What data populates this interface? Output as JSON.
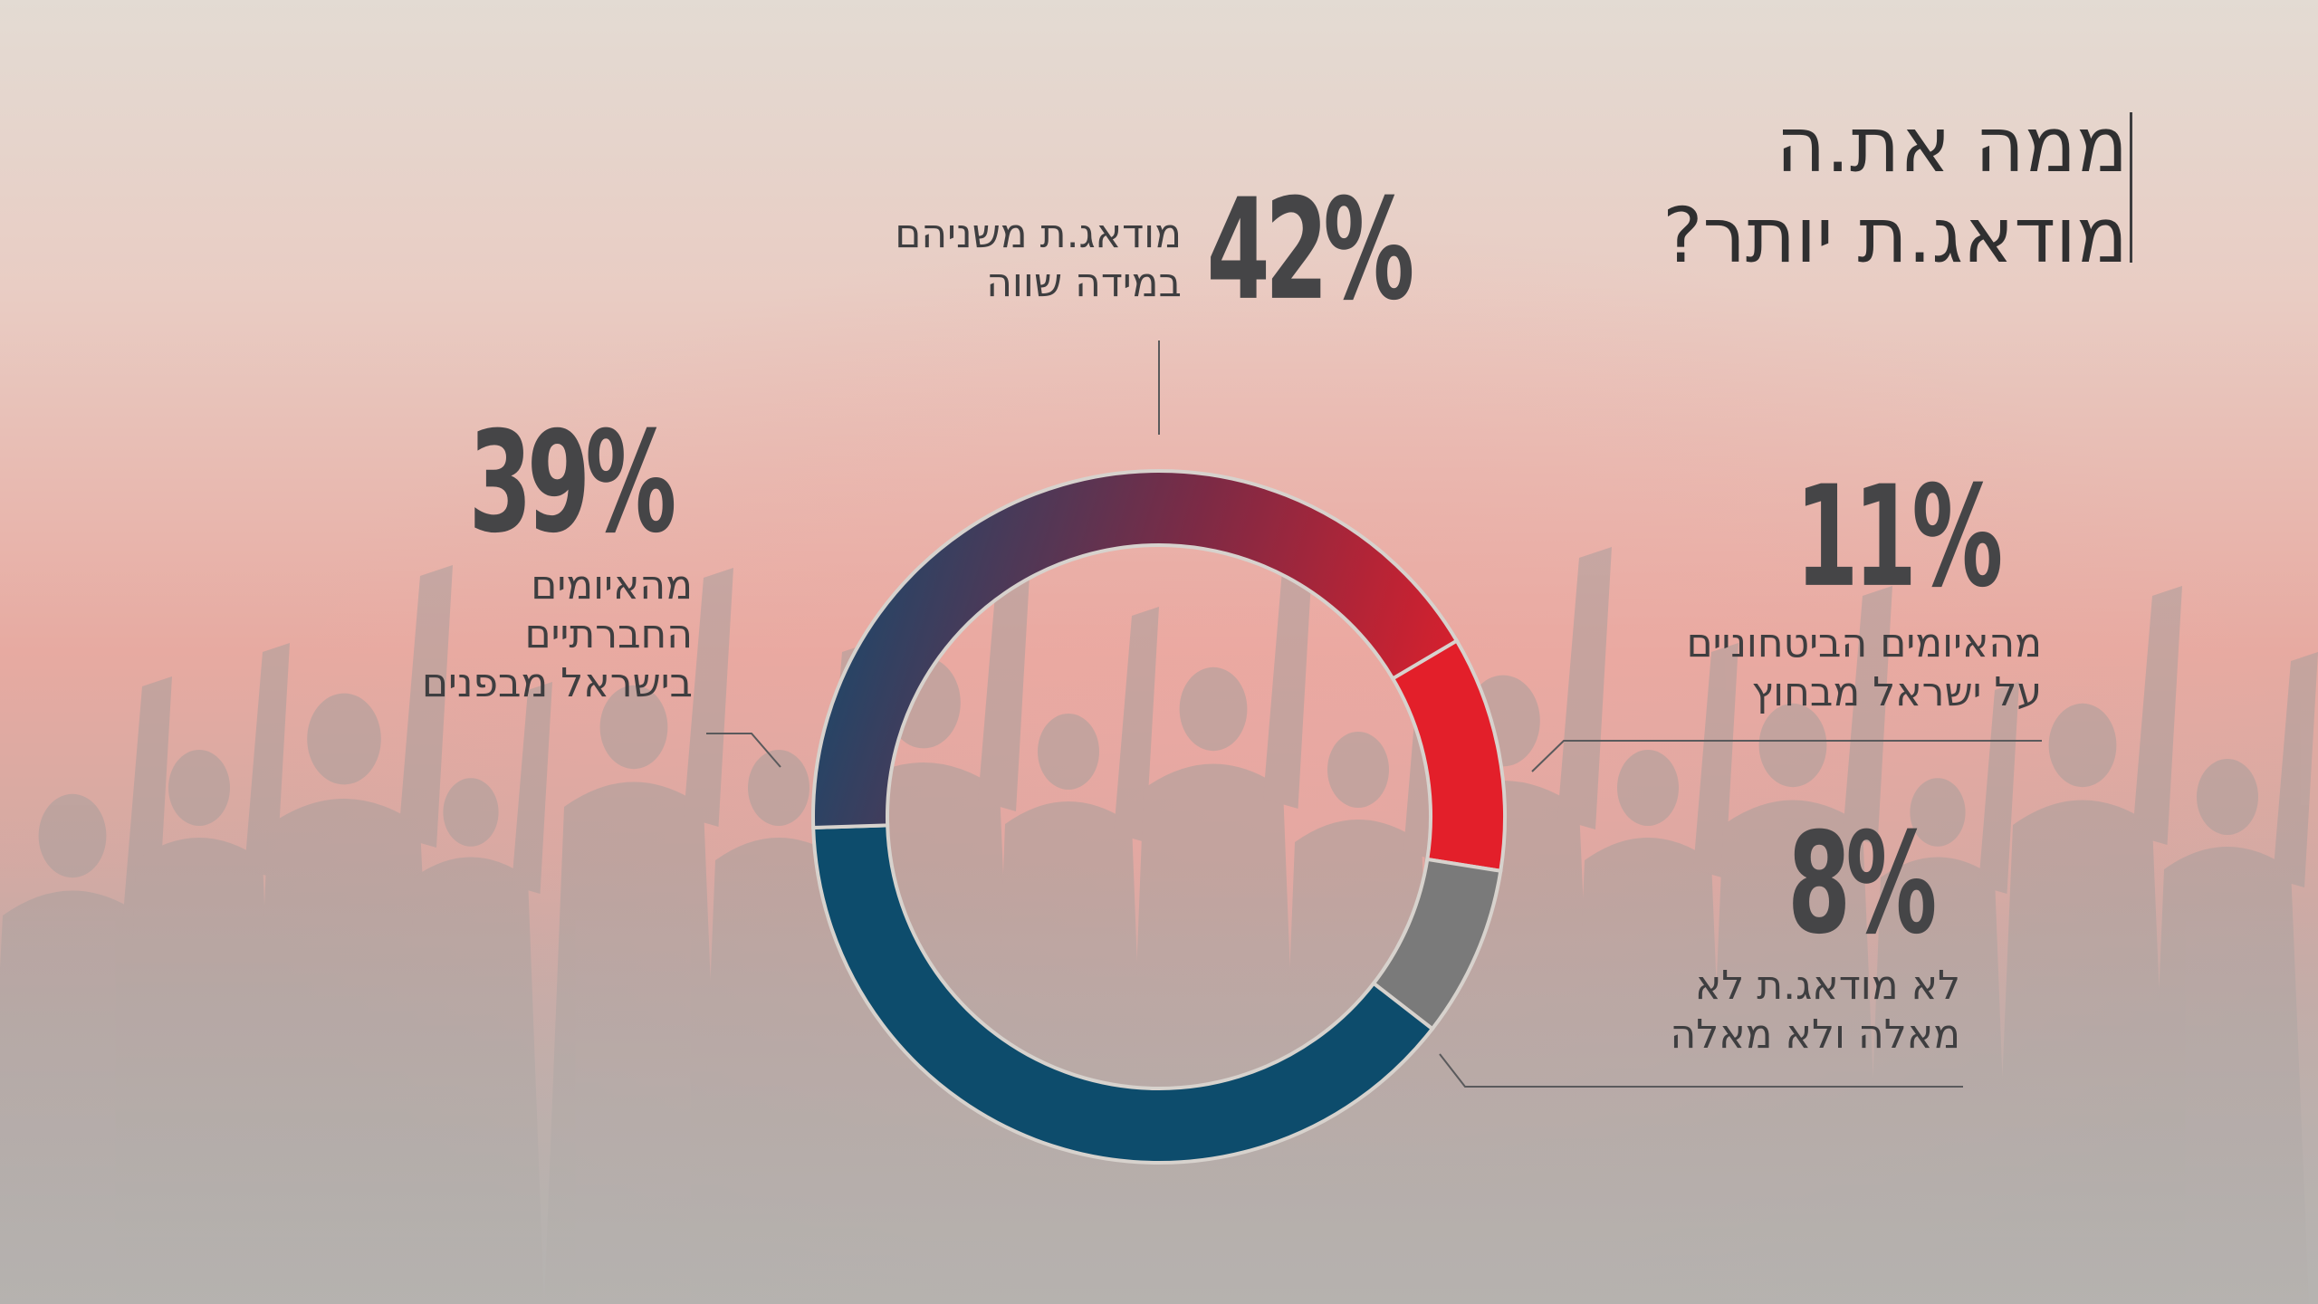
{
  "title": {
    "line1": "ממה את.ה",
    "line2": "מודאג.ת יותר?"
  },
  "colors": {
    "background_top": "#e0d6cd",
    "background_mid": "#e8b3a8",
    "background_bottom": "#b3b0ad",
    "security_red": "#e31f2a",
    "social_blue": "#0d4c6c",
    "neither_gray": "#7a7a7a",
    "both_gradient": [
      "#e31f2a",
      "#1e4769"
    ],
    "text_dark": "#454547"
  },
  "chart_data": {
    "type": "pie",
    "slices": [
      {
        "key": "security",
        "value": 11,
        "value_label": "11%",
        "label_lines": [
          "מהאיומים הביטחוניים",
          "על ישראל מבחוץ"
        ]
      },
      {
        "key": "neither",
        "value": 8,
        "value_label": "8%",
        "label_lines": [
          "לא מודאג.ת לא",
          "מאלה ולא מאלה"
        ]
      },
      {
        "key": "social",
        "value": 39,
        "value_label": "39%",
        "label_lines": [
          "מהאיומים",
          "החברתיים",
          "בישראל מבפנים"
        ]
      },
      {
        "key": "both",
        "value": 42,
        "value_label": "42%",
        "label_lines": [
          "מודאג.ת משניהם",
          "במידה שווה"
        ]
      }
    ]
  }
}
